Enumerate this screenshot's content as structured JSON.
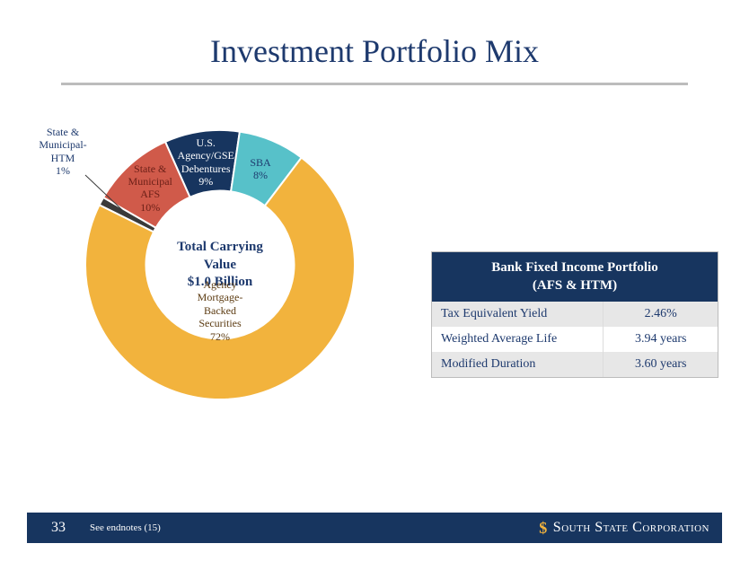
{
  "slide": {
    "title": "Investment Portfolio Mix",
    "page_number": "33",
    "footnote": "See endnotes (15)",
    "brand": "South State Corporation"
  },
  "chart": {
    "type": "donut",
    "center_line1": "Total Carrying",
    "center_line2": "Value",
    "center_line3": "$1.0 Billion",
    "inner_radius_pct": 55,
    "background_color": "#ffffff",
    "segments": [
      {
        "label": "U.S. Agency/GSE Debentures",
        "lines": [
          "U.S.",
          "Agency/GSE",
          "Debentures"
        ],
        "pct": 9,
        "color": "#17355f",
        "text_color": "#ffffff"
      },
      {
        "label": "SBA",
        "lines": [
          "SBA"
        ],
        "pct": 8,
        "color": "#57c1c9",
        "text_color": "#1e3a6e"
      },
      {
        "label": "Agency Mortgage-Backed Securities",
        "lines": [
          "Agency",
          "Mortgage-",
          "Backed",
          "Securities"
        ],
        "pct": 72,
        "color": "#f2b33d",
        "text_color": "#5b3a10"
      },
      {
        "label": "State & Municipal-HTM",
        "lines": [
          "State &",
          "Municipal-",
          "HTM"
        ],
        "pct": 1,
        "color": "#3a3a3a",
        "text_color": "#1e3a6e",
        "external": true
      },
      {
        "label": "State & Municipal AFS",
        "lines": [
          "State &",
          "Municipal",
          "AFS"
        ],
        "pct": 10,
        "color": "#d05a4a",
        "text_color": "#6b1f17"
      }
    ],
    "start_angle_deg": -24
  },
  "table": {
    "header_line1": "Bank Fixed Income Portfolio",
    "header_line2": "(AFS & HTM)",
    "header_bg": "#17355f",
    "header_text_color": "#ffffff",
    "row_alt_bg": "#e7e7e7",
    "border_color": "#bcbcbc",
    "rows": [
      {
        "k": "Tax Equivalent Yield",
        "v": "2.46%"
      },
      {
        "k": "Weighted Average Life",
        "v": "3.94 years"
      },
      {
        "k": "Modified Duration",
        "v": "3.60 years"
      }
    ]
  },
  "footer": {
    "bg": "#17355f",
    "text_color": "#ffffff",
    "logo_color": "#f2b33d"
  }
}
